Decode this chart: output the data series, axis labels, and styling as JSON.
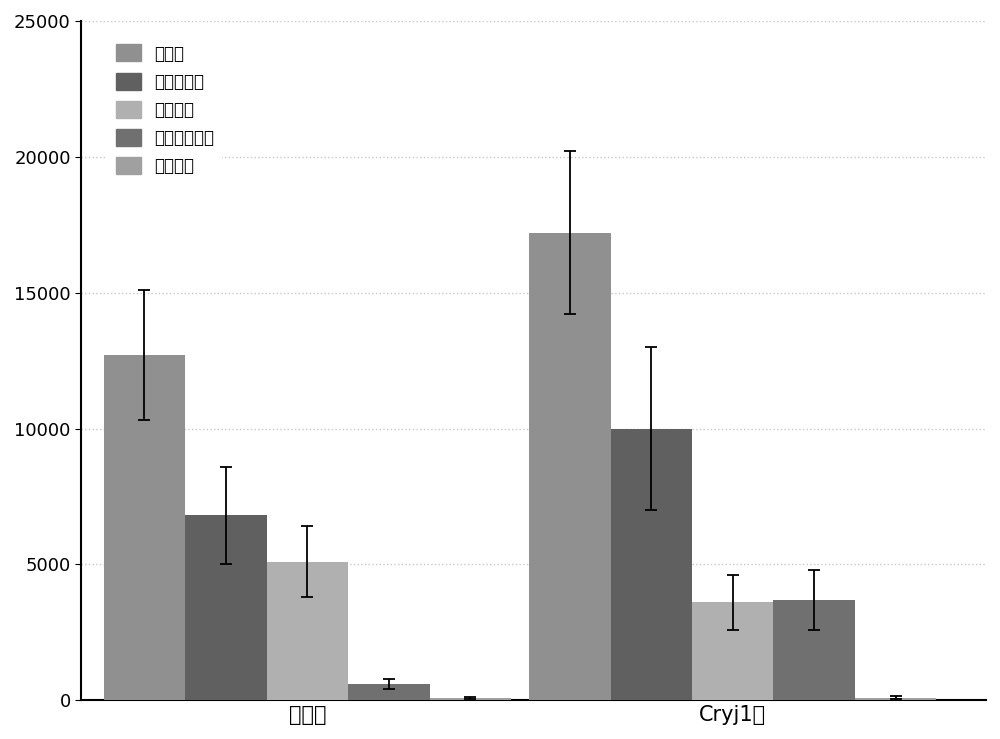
{
  "groups": [
    "对照组",
    "Cryj1组"
  ],
  "series_labels": [
    "总细胞",
    "中性粒细胞",
    "巨噬细胞",
    "嗜酸性粒细胞",
    "淋巴细胞"
  ],
  "values": [
    [
      12700,
      6800,
      5100,
      600,
      80
    ],
    [
      17200,
      10000,
      3600,
      3700,
      100
    ]
  ],
  "errors": [
    [
      2400,
      1800,
      1300,
      200,
      50
    ],
    [
      3000,
      3000,
      1000,
      1100,
      60
    ]
  ],
  "colors": [
    "#909090",
    "#606060",
    "#b0b0b0",
    "#707070",
    "#a0a0a0"
  ],
  "ylim": [
    0,
    25000
  ],
  "yticks": [
    0,
    5000,
    10000,
    15000,
    20000,
    25000
  ],
  "bar_width": 0.09,
  "group_centers": [
    0.25,
    0.72
  ],
  "xlim": [
    0.0,
    1.0
  ],
  "background_color": "#ffffff",
  "grid_color": "#c8c8c8",
  "legend_fontsize": 12,
  "tick_fontsize": 13,
  "label_fontsize": 15,
  "figsize": [
    10.0,
    7.39
  ],
  "dpi": 100
}
